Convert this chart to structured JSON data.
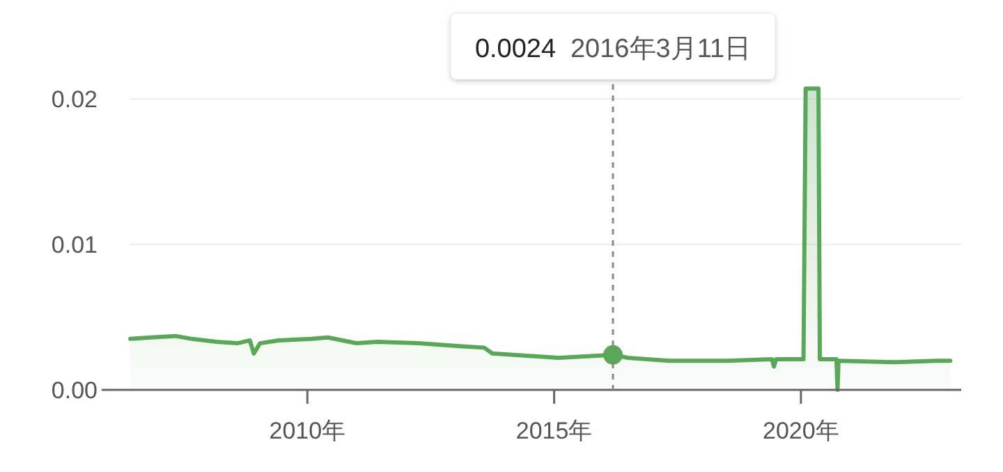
{
  "chart_data": {
    "type": "area",
    "x": [
      "2006-06-01",
      "2006-11-01",
      "2007-05-01",
      "2007-09-01",
      "2008-03-01",
      "2008-08-01",
      "2008-11-01",
      "2008-12-01",
      "2009-01-15",
      "2009-06-01",
      "2010-02-01",
      "2010-06-01",
      "2011-01-01",
      "2011-06-01",
      "2012-04-01",
      "2013-02-01",
      "2013-08-01",
      "2013-10-01",
      "2014-09-01",
      "2015-02-01",
      "2016-03-11",
      "2016-07-01",
      "2017-05-01",
      "2018-07-01",
      "2019-06-01",
      "2019-06-15",
      "2019-07-01",
      "2020-01-20",
      "2020-02-05",
      "2020-05-10",
      "2020-05-20",
      "2020-09-20",
      "2020-09-28",
      "2020-10-05",
      "2021-12-01",
      "2022-10-01",
      "2023-01-10"
    ],
    "series": [
      {
        "color": "#5aa75a",
        "values": [
          0.0035,
          0.0036,
          0.0037,
          0.0035,
          0.0033,
          0.0032,
          0.0034,
          0.0025,
          0.0032,
          0.0034,
          0.0035,
          0.0036,
          0.0032,
          0.0033,
          0.0032,
          0.003,
          0.0029,
          0.0025,
          0.0023,
          0.0022,
          0.0024,
          0.0022,
          0.002,
          0.002,
          0.0021,
          0.0016,
          0.0021,
          0.0021,
          0.0207,
          0.0207,
          0.0021,
          0.0021,
          0.0,
          0.002,
          0.0019,
          0.002,
          0.002
        ]
      }
    ],
    "xlim": [
      "2005-11-01",
      "2023-04-01"
    ],
    "xticks": [
      {
        "value": "2010-01-01",
        "label": "2010年"
      },
      {
        "value": "2015-01-01",
        "label": "2015年"
      },
      {
        "value": "2020-01-01",
        "label": "2020年"
      }
    ],
    "ylim": [
      0,
      0.021
    ],
    "yticks": [
      {
        "value": 0,
        "label": "0.00"
      },
      0.01,
      0.02
    ],
    "grid": "y",
    "ref_lines": [
      {
        "axis": "x",
        "value": "2016-03-11",
        "label": null,
        "color": "#888888",
        "line_style": "dashed"
      }
    ],
    "annotations": [
      "0.0024",
      "2016年3月11日"
    ]
  }
}
